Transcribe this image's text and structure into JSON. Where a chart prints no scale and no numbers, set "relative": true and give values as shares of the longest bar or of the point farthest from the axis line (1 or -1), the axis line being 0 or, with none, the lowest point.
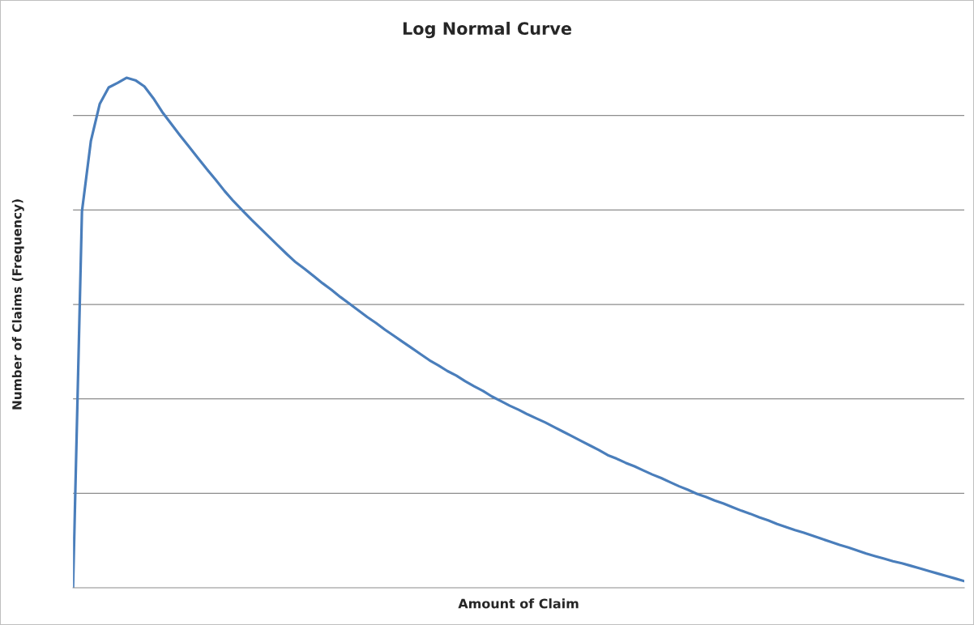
{
  "chart_data": {
    "type": "line",
    "title": "Log Normal Curve",
    "xlabel": "Amount of Claim",
    "ylabel": "Number of Claims (Frequency)",
    "relative": true,
    "grid": "y",
    "categories": [
      null,
      null,
      null,
      null,
      null,
      null,
      null,
      null,
      null,
      null,
      null,
      null,
      null,
      null,
      null,
      null,
      null,
      null,
      null,
      null,
      null,
      null,
      null,
      null,
      null,
      null,
      null,
      null,
      null,
      null,
      null,
      null,
      null,
      null,
      null,
      null,
      null,
      null,
      null,
      null,
      null,
      null,
      null,
      null,
      null,
      null,
      null,
      null,
      null,
      null,
      null,
      null,
      null,
      null,
      null,
      null,
      null,
      null,
      null,
      null,
      null,
      null,
      null,
      null,
      null,
      null,
      null,
      null,
      null,
      null,
      null,
      null,
      null,
      null,
      null,
      null,
      null,
      null,
      null,
      null,
      null,
      null,
      null,
      null,
      null,
      null,
      null,
      null,
      null,
      null,
      null,
      null,
      null,
      null,
      null,
      null,
      null,
      null,
      null,
      null,
      null
    ],
    "series": [
      {
        "color": "#4a7ebb",
        "values": [
          0,
          0.738,
          0.876,
          0.949,
          0.981,
          0.99,
          1,
          0.995,
          0.983,
          0.96,
          0.933,
          0.91,
          0.887,
          0.865,
          0.843,
          0.821,
          0.8,
          0.778,
          0.758,
          0.74,
          0.722,
          0.705,
          0.688,
          0.671,
          0.654,
          0.638,
          0.625,
          0.611,
          0.597,
          0.584,
          0.57,
          0.557,
          0.544,
          0.531,
          0.519,
          0.506,
          0.494,
          0.482,
          0.47,
          0.458,
          0.446,
          0.436,
          0.425,
          0.416,
          0.405,
          0.395,
          0.386,
          0.375,
          0.366,
          0.357,
          0.349,
          0.34,
          0.332,
          0.324,
          0.315,
          0.306,
          0.297,
          0.288,
          0.279,
          0.27,
          0.26,
          0.253,
          0.245,
          0.238,
          0.23,
          0.222,
          0.215,
          0.207,
          0.199,
          0.192,
          0.184,
          0.178,
          0.171,
          0.165,
          0.158,
          0.151,
          0.145,
          0.138,
          0.132,
          0.125,
          0.119,
          0.113,
          0.108,
          0.102,
          0.096,
          0.09,
          0.084,
          0.079,
          0.073,
          0.067,
          0.062,
          0.057,
          0.052,
          0.048,
          0.043,
          0.038,
          0.033,
          0.028,
          0.023,
          0.018,
          0.013
        ]
      }
    ]
  }
}
